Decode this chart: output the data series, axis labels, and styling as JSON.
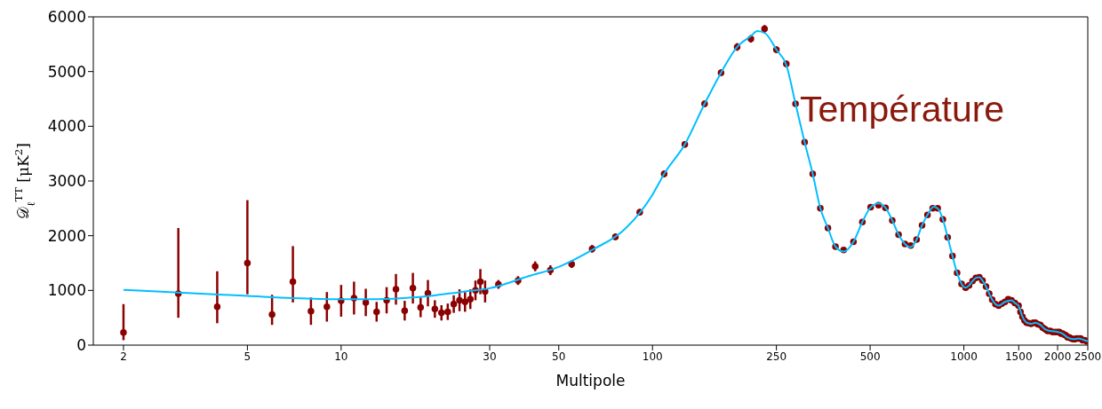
{
  "chart_data": {
    "type": "scatter",
    "xlabel": "Multipole",
    "ylabel": "𝒟$_{ℓ}$$^{TT}$  [μK$^{2}$]",
    "annotations": [
      "Température"
    ],
    "log": "x",
    "xlim": [
      1.6,
      2500
    ],
    "xticks": [
      2,
      5,
      10,
      30,
      50,
      100,
      250,
      500,
      1000,
      1500,
      2000,
      2500
    ],
    "ylim": [
      0,
      6000
    ],
    "yticks": [
      0,
      1000,
      2000,
      3000,
      4000,
      5000,
      6000
    ],
    "series": [
      {
        "type": "line",
        "marker": "none",
        "color": "#00bfff",
        "x": [
          2,
          3,
          5,
          7,
          10,
          13,
          17,
          20,
          25,
          30,
          40,
          50,
          65,
          80,
          100,
          109,
          127,
          147,
          166,
          187,
          207,
          217,
          230,
          250,
          269,
          288,
          308,
          327,
          346,
          366,
          387,
          411,
          442,
          472,
          502,
          532,
          560,
          589,
          617,
          647,
          675,
          705,
          734,
          764,
          800,
          830,
          856,
          887,
          919,
          951,
          983,
          1013,
          1039,
          1066,
          1093,
          1121,
          1148,
          1178,
          1206,
          1233,
          1263,
          1293,
          1355,
          1422,
          1458,
          1498,
          1542,
          1591,
          1643,
          1698,
          1760,
          1823,
          1893,
          2002,
          2075,
          2154,
          2243,
          2335,
          2442,
          2500
        ],
        "values": [
          1010,
          960,
          900,
          860,
          840,
          840,
          870,
          910,
          980,
          1040,
          1260,
          1430,
          1760,
          2080,
          2750,
          3130,
          3670,
          4410,
          4980,
          5450,
          5650,
          5740,
          5700,
          5400,
          5120,
          4410,
          3710,
          3130,
          2500,
          2140,
          1800,
          1710,
          1890,
          2250,
          2520,
          2590,
          2510,
          2280,
          2020,
          1850,
          1790,
          1930,
          2190,
          2380,
          2530,
          2480,
          2300,
          1970,
          1630,
          1320,
          1120,
          1050,
          1090,
          1170,
          1230,
          1240,
          1180,
          1070,
          940,
          830,
          750,
          720,
          790,
          820,
          770,
          720,
          520,
          410,
          390,
          410,
          370,
          290,
          260,
          240,
          210,
          140,
          110,
          120,
          90,
          70
        ]
      },
      {
        "marker": "circle",
        "color": "#8b0000",
        "x": [
          2,
          3,
          4,
          5,
          6,
          7,
          8,
          9,
          10,
          11,
          12,
          13,
          14,
          15,
          16,
          17,
          18,
          19,
          20,
          21,
          22,
          23,
          24,
          25,
          26,
          27,
          28,
          29,
          32,
          37,
          42,
          47,
          55,
          64,
          76,
          91,
          109,
          127,
          147,
          166,
          187,
          207,
          229,
          250,
          269,
          288,
          308,
          327,
          346,
          366,
          387,
          411,
          442,
          472,
          502,
          532,
          560,
          589,
          617,
          647,
          675,
          705,
          734,
          764,
          794,
          824,
          856,
          887,
          919,
          951,
          983,
          1013,
          1039,
          1066,
          1093,
          1121,
          1148,
          1178,
          1206,
          1233,
          1263,
          1293,
          1324,
          1355,
          1388,
          1422,
          1458,
          1498,
          1520,
          1542,
          1566,
          1591,
          1618,
          1643,
          1671,
          1698,
          1728,
          1760,
          1791,
          1823,
          1856,
          1893,
          1928,
          1967,
          2002,
          2027,
          2050,
          2075,
          2102,
          2126,
          2154,
          2181,
          2211,
          2243,
          2272,
          2302,
          2335,
          2370,
          2405,
          2442,
          2484
        ],
        "values": [
          230,
          940,
          700,
          1500,
          560,
          1160,
          620,
          700,
          810,
          860,
          780,
          610,
          820,
          1020,
          630,
          1040,
          690,
          950,
          660,
          590,
          610,
          750,
          820,
          790,
          840,
          1000,
          1160,
          980,
          1110,
          1180,
          1440,
          1370,
          1480,
          1760,
          1980,
          2430,
          3130,
          3670,
          4410,
          4980,
          5450,
          5600,
          5780,
          5400,
          5140,
          4410,
          3710,
          3130,
          2500,
          2140,
          1800,
          1740,
          1890,
          2250,
          2520,
          2560,
          2510,
          2280,
          2020,
          1850,
          1820,
          1930,
          2190,
          2380,
          2500,
          2500,
          2300,
          1970,
          1630,
          1320,
          1120,
          1050,
          1090,
          1170,
          1230,
          1240,
          1180,
          1070,
          940,
          830,
          750,
          720,
          760,
          790,
          840,
          820,
          770,
          720,
          610,
          520,
          450,
          410,
          400,
          390,
          410,
          410,
          380,
          370,
          320,
          290,
          260,
          260,
          240,
          240,
          240,
          240,
          210,
          210,
          190,
          180,
          140,
          140,
          120,
          110,
          110,
          120,
          120,
          120,
          90,
          90,
          70
        ],
        "errors": [
          [
            90,
            750
          ],
          [
            500,
            2140
          ],
          [
            400,
            1350
          ],
          [
            930,
            2650
          ],
          [
            370,
            920
          ],
          [
            780,
            1810
          ],
          250,
          270,
          290,
          300,
          250,
          180,
          240,
          280,
          180,
          280,
          180,
          240,
          160,
          140,
          150,
          160,
          200,
          180,
          180,
          180,
          230,
          200,
          80,
          80,
          90,
          90,
          70,
          70,
          60,
          60,
          60,
          60,
          60,
          60,
          70,
          70,
          70,
          60,
          60,
          null,
          null,
          null,
          null,
          null,
          null,
          null,
          null,
          null,
          null,
          null,
          null,
          null,
          null,
          null,
          null,
          null,
          null,
          null,
          null,
          null,
          null,
          null,
          null,
          null,
          null,
          null,
          null,
          null,
          null,
          null,
          null,
          null,
          null,
          null,
          null,
          null,
          null,
          null,
          null,
          null,
          null,
          null,
          null,
          null,
          null,
          null,
          null,
          null,
          null,
          null,
          null,
          null,
          null,
          null,
          null,
          null,
          null,
          null,
          null,
          null,
          null,
          null,
          null,
          null,
          null,
          null,
          null,
          null,
          null,
          null,
          null,
          null,
          null,
          null,
          null
        ]
      }
    ]
  }
}
